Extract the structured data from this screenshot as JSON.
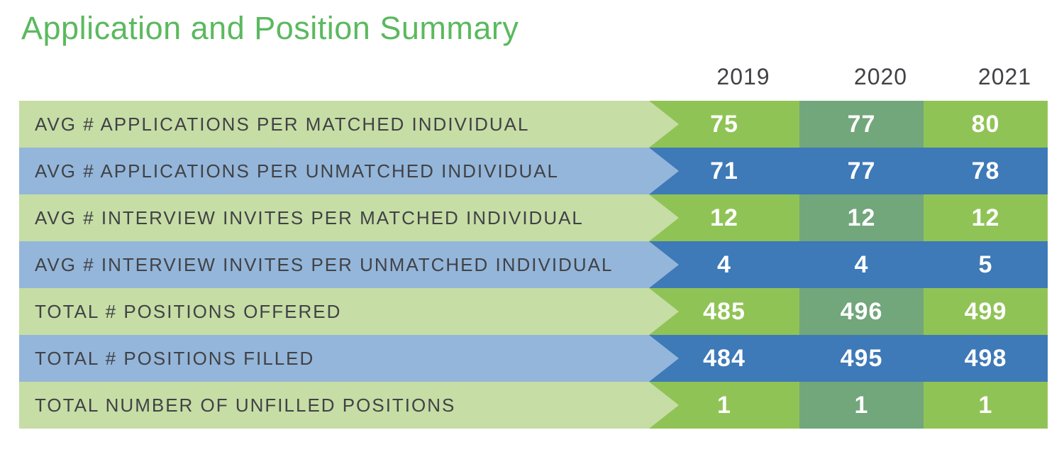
{
  "title": "Application and Position Summary",
  "colors": {
    "title_green": "#5bb95f",
    "header_text": "#414246",
    "label_text": "#414246",
    "value_text": "#ffffff",
    "row_green_light": "#c6dda5",
    "row_green_dark": "#90c355",
    "row_green_mid": "#72a67b",
    "row_blue_light": "#94b6da",
    "row_blue_dark": "#3e79b8"
  },
  "chart_data": {
    "type": "table",
    "title": "Application and Position Summary",
    "columns": [
      "2019",
      "2020",
      "2021"
    ],
    "rows": [
      {
        "label": "AVG # APPLICATIONS PER MATCHED INDIVIDUAL",
        "values": [
          75,
          77,
          80
        ],
        "theme": "green"
      },
      {
        "label": "AVG # APPLICATIONS PER UNMATCHED INDIVIDUAL",
        "values": [
          71,
          77,
          78
        ],
        "theme": "blue"
      },
      {
        "label": "AVG # INTERVIEW INVITES PER MATCHED INDIVIDUAL",
        "values": [
          12,
          12,
          12
        ],
        "theme": "green"
      },
      {
        "label": "AVG # INTERVIEW INVITES PER UNMATCHED INDIVIDUAL",
        "values": [
          4,
          4,
          5
        ],
        "theme": "blue"
      },
      {
        "label": "TOTAL # POSITIONS OFFERED",
        "values": [
          485,
          496,
          499
        ],
        "theme": "green"
      },
      {
        "label": "TOTAL # POSITIONS FILLED",
        "values": [
          484,
          495,
          498
        ],
        "theme": "blue"
      },
      {
        "label": "TOTAL NUMBER OF UNFILLED POSITIONS",
        "values": [
          1,
          1,
          1
        ],
        "theme": "green"
      }
    ],
    "legend_position": "none",
    "grid": false
  }
}
